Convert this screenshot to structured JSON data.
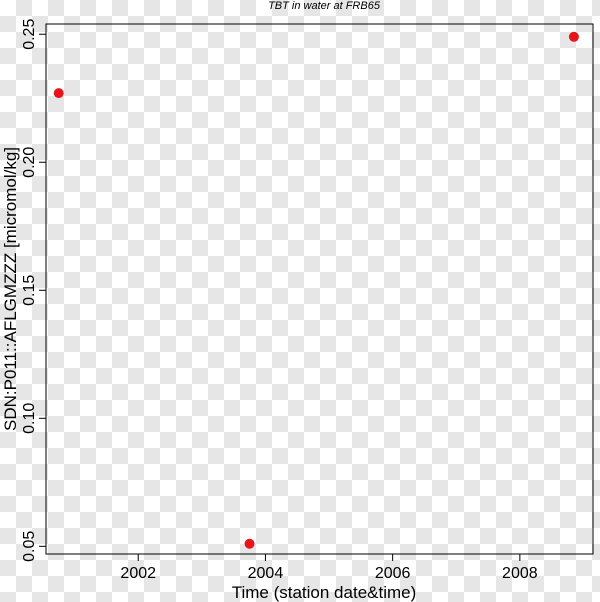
{
  "chart_data": {
    "type": "scatter",
    "title": "TBT in water at FRB65",
    "xlabel": "Time (station date&time)",
    "ylabel": "SDN:P011::AFLGMZZZ [micromol/kg]",
    "xlim": [
      2000.55,
      2009.15
    ],
    "ylim": [
      0.047,
      0.254
    ],
    "x_ticks": [
      2002,
      2004,
      2006,
      2008
    ],
    "x_tick_labels": [
      "2002",
      "2004",
      "2006",
      "2008"
    ],
    "y_ticks": [
      0.05,
      0.1,
      0.15,
      0.2,
      0.25
    ],
    "y_tick_labels": [
      "0.05",
      "0.10",
      "0.15",
      "0.20",
      "0.25"
    ],
    "grid": false,
    "series": [
      {
        "color": "#e8141c",
        "points": [
          {
            "x": 2000.75,
            "y": 0.227
          },
          {
            "x": 2003.75,
            "y": 0.051
          },
          {
            "x": 2008.85,
            "y": 0.249
          }
        ]
      }
    ]
  }
}
